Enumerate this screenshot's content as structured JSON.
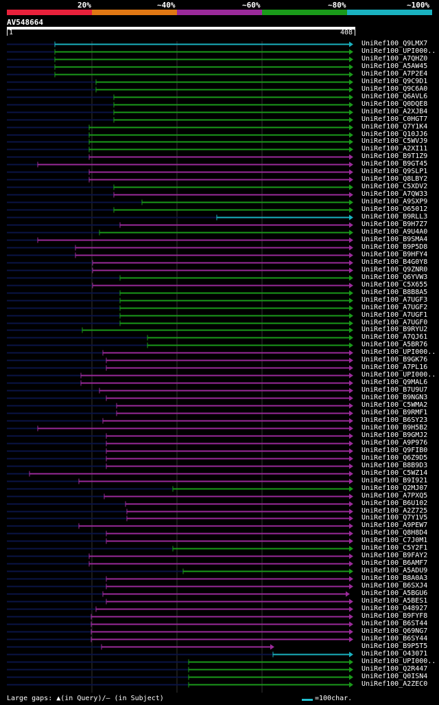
{
  "percent_bar": [
    {
      "label": "20%",
      "color": "#e8213b"
    },
    {
      "label": "~40%",
      "color": "#e07814"
    },
    {
      "label": "~60%",
      "color": "#9a2a9a"
    },
    {
      "label": "~80%",
      "color": "#1a9a1a"
    },
    {
      "label": "~100%",
      "color": "#1ab2c0"
    }
  ],
  "query": {
    "id": "AV548664",
    "start": "1",
    "end": "408"
  },
  "footer": {
    "gaps_text": "Large gaps: ▲(in Query)/— (in Subject)",
    "legend_text": "=100char."
  },
  "colors": {
    "dark": "#0a1446",
    "tan": "#1ab2c0",
    "green": "#1a9a1a",
    "purple": "#9a2a9a",
    "tri": "#ffff99"
  },
  "hits": [
    {
      "id": "UniRef100_Q9LMX7",
      "c": "tan",
      "s": 80,
      "e": 515
    },
    {
      "id": "UniRef100_UPI000..",
      "c": "green",
      "s": 80,
      "e": 515
    },
    {
      "id": "UniRef100_A7QHZ0",
      "c": "green",
      "s": 80,
      "e": 515
    },
    {
      "id": "UniRef100_A5AW45",
      "c": "green",
      "s": 80,
      "e": 515
    },
    {
      "id": "UniRef100_A7P2E4",
      "c": "green",
      "s": 80,
      "e": 515
    },
    {
      "id": "UniRef100_Q9C9D1",
      "c": "green",
      "s": 140,
      "e": 515
    },
    {
      "id": "UniRef100_Q9C6A0",
      "c": "green",
      "s": 140,
      "e": 515
    },
    {
      "id": "UniRef100_Q6AVL6",
      "c": "green",
      "s": 166,
      "e": 515
    },
    {
      "id": "UniRef100_Q0DQE8",
      "c": "green",
      "s": 166,
      "e": 515
    },
    {
      "id": "UniRef100_A2XJB4",
      "c": "green",
      "s": 166,
      "e": 515
    },
    {
      "id": "UniRef100_C0HGT7",
      "c": "green",
      "s": 166,
      "e": 515
    },
    {
      "id": "UniRef100_Q7Y1K4",
      "c": "green",
      "s": 130,
      "e": 515
    },
    {
      "id": "UniRef100_Q10JJ6",
      "c": "green",
      "s": 130,
      "e": 515
    },
    {
      "id": "UniRef100_C5WVJ9",
      "c": "green",
      "s": 130,
      "e": 515
    },
    {
      "id": "UniRef100_A2XI11",
      "c": "green",
      "s": 130,
      "e": 515
    },
    {
      "id": "UniRef100_B9T1Z9",
      "c": "purple",
      "s": 130,
      "e": 515
    },
    {
      "id": "UniRef100_B9GT45",
      "c": "purple",
      "s": 55,
      "e": 515
    },
    {
      "id": "UniRef100_Q9SLP1",
      "c": "purple",
      "s": 130,
      "e": 515
    },
    {
      "id": "UniRef100_Q8LBY2",
      "c": "purple",
      "s": 130,
      "e": 515
    },
    {
      "id": "UniRef100_C5XDV2",
      "c": "green",
      "s": 166,
      "e": 515
    },
    {
      "id": "UniRef100_A7QW33",
      "c": "purple",
      "s": 166,
      "e": 515
    },
    {
      "id": "UniRef100_A9SXP9",
      "c": "green",
      "s": 207,
      "e": 515
    },
    {
      "id": "UniRef100_O65012",
      "c": "green",
      "s": 166,
      "e": 515
    },
    {
      "id": "UniRef100_B9RLL3",
      "c": "tan",
      "s": 316,
      "e": 515
    },
    {
      "id": "UniRef100_B9H7Z7",
      "c": "purple",
      "s": 175,
      "e": 515
    },
    {
      "id": "UniRef100_A9U4A0",
      "c": "green",
      "s": 145,
      "e": 515
    },
    {
      "id": "UniRef100_B9SMA4",
      "c": "purple",
      "s": 55,
      "e": 515
    },
    {
      "id": "UniRef100_B9P5D8",
      "c": "purple",
      "s": 110,
      "e": 515
    },
    {
      "id": "UniRef100_B9HFY4",
      "c": "purple",
      "s": 110,
      "e": 515
    },
    {
      "id": "UniRef100_B4G0Y8",
      "c": "purple",
      "s": 135,
      "e": 515
    },
    {
      "id": "UniRef100_Q9ZNR0",
      "c": "purple",
      "s": 135,
      "e": 515
    },
    {
      "id": "UniRef100_Q6YVW3",
      "c": "green",
      "s": 175,
      "e": 515
    },
    {
      "id": "UniRef100_C5X655",
      "c": "purple",
      "s": 135,
      "e": 515
    },
    {
      "id": "UniRef100_B8B8A5",
      "c": "green",
      "s": 175,
      "e": 515
    },
    {
      "id": "UniRef100_A7UGF3",
      "c": "green",
      "s": 175,
      "e": 515
    },
    {
      "id": "UniRef100_A7UGF2",
      "c": "green",
      "s": 175,
      "e": 515
    },
    {
      "id": "UniRef100_A7UGF1",
      "c": "green",
      "s": 175,
      "e": 515
    },
    {
      "id": "UniRef100_A7UGF0",
      "c": "green",
      "s": 175,
      "e": 515
    },
    {
      "id": "UniRef100_B9RYU2",
      "c": "green",
      "s": 120,
      "e": 515
    },
    {
      "id": "UniRef100_A7QJ61",
      "c": "green",
      "s": 215,
      "e": 515
    },
    {
      "id": "UniRef100_A5BR76",
      "c": "green",
      "s": 215,
      "e": 515
    },
    {
      "id": "UniRef100_UPI000..",
      "c": "purple",
      "s": 150,
      "e": 515
    },
    {
      "id": "UniRef100_B9GK76",
      "c": "purple",
      "s": 155,
      "e": 515
    },
    {
      "id": "UniRef100_A7PL16",
      "c": "purple",
      "s": 155,
      "e": 515
    },
    {
      "id": "UniRef100_UPI000..",
      "c": "purple",
      "s": 118,
      "e": 515
    },
    {
      "id": "UniRef100_Q9MAL6",
      "c": "purple",
      "s": 118,
      "e": 515
    },
    {
      "id": "UniRef100_B7U9U7",
      "c": "purple",
      "s": 145,
      "e": 515
    },
    {
      "id": "UniRef100_B9NGN3",
      "c": "purple",
      "s": 155,
      "e": 515
    },
    {
      "id": "UniRef100_C5WMA2",
      "c": "purple",
      "s": 170,
      "e": 515
    },
    {
      "id": "UniRef100_B9RMF1",
      "c": "purple",
      "s": 170,
      "e": 515
    },
    {
      "id": "UniRef100_B6SY23",
      "c": "purple",
      "s": 150,
      "e": 515
    },
    {
      "id": "UniRef100_B9H5B2",
      "c": "purple",
      "s": 55,
      "e": 515
    },
    {
      "id": "UniRef100_B9GMJ2",
      "c": "purple",
      "s": 155,
      "e": 515
    },
    {
      "id": "UniRef100_A9P976",
      "c": "purple",
      "s": 155,
      "e": 515
    },
    {
      "id": "UniRef100_Q9FIB0",
      "c": "purple",
      "s": 155,
      "e": 515
    },
    {
      "id": "UniRef100_Q6Z9D5",
      "c": "purple",
      "s": 155,
      "e": 515
    },
    {
      "id": "UniRef100_B8B9D3",
      "c": "purple",
      "s": 155,
      "e": 515
    },
    {
      "id": "UniRef100_C5WZ14",
      "c": "purple",
      "s": 43,
      "e": 515
    },
    {
      "id": "UniRef100_B9I921",
      "c": "purple",
      "s": 115,
      "e": 515
    },
    {
      "id": "UniRef100_Q2MJ07",
      "c": "green",
      "s": 252,
      "e": 515
    },
    {
      "id": "UniRef100_A7PXQ5",
      "c": "purple",
      "s": 152,
      "e": 515
    },
    {
      "id": "UniRef100_B6U102",
      "c": "purple",
      "s": 183,
      "e": 515
    },
    {
      "id": "UniRef100_A2Z725",
      "c": "purple",
      "s": 185,
      "e": 515
    },
    {
      "id": "UniRef100_Q7Y1V5",
      "c": "purple",
      "s": 185,
      "e": 515
    },
    {
      "id": "UniRef100_A9PEW7",
      "c": "purple",
      "s": 115,
      "e": 515
    },
    {
      "id": "UniRef100_Q8H8D4",
      "c": "purple",
      "s": 155,
      "e": 515
    },
    {
      "id": "UniRef100_C7J0M1",
      "c": "purple",
      "s": 155,
      "e": 515
    },
    {
      "id": "UniRef100_C5Y2F1",
      "c": "green",
      "s": 252,
      "e": 515
    },
    {
      "id": "UniRef100_B9FAY2",
      "c": "purple",
      "s": 130,
      "e": 515
    },
    {
      "id": "UniRef100_B6AMF7",
      "c": "purple",
      "s": 130,
      "e": 515
    },
    {
      "id": "UniRef100_A5ADU9",
      "c": "green",
      "s": 267,
      "e": 515
    },
    {
      "id": "UniRef100_B8A0A3",
      "c": "purple",
      "s": 155,
      "e": 515
    },
    {
      "id": "UniRef100_B6SXJ4",
      "c": "purple",
      "s": 155,
      "e": 515
    },
    {
      "id": "UniRef100_A5BGU6",
      "c": "purple",
      "s": 150,
      "e": 510
    },
    {
      "id": "UniRef100_A5BES1",
      "c": "purple",
      "s": 155,
      "e": 515
    },
    {
      "id": "UniRef100_O48927",
      "c": "purple",
      "s": 140,
      "e": 515
    },
    {
      "id": "UniRef100_B9FYF8",
      "c": "purple",
      "s": 133,
      "e": 515
    },
    {
      "id": "UniRef100_B6ST44",
      "c": "purple",
      "s": 133,
      "e": 515
    },
    {
      "id": "UniRef100_Q69NG7",
      "c": "purple",
      "s": 133,
      "e": 515
    },
    {
      "id": "UniRef100_B6SY44",
      "c": "purple",
      "s": 133,
      "e": 515
    },
    {
      "id": "UniRef100_B9P5T5",
      "c": "purple",
      "s": 148,
      "e": 400
    },
    {
      "id": "UniRef100_O43071",
      "c": "tan",
      "s": 398,
      "e": 515
    },
    {
      "id": "UniRef100_UPI000..",
      "c": "green",
      "s": 275,
      "e": 515
    },
    {
      "id": "UniRef100_Q2R447",
      "c": "green",
      "s": 275,
      "e": 515
    },
    {
      "id": "UniRef100_Q0ISN4",
      "c": "green",
      "s": 275,
      "e": 515
    },
    {
      "id": "UniRef100_A2ZEC0",
      "c": "green",
      "s": 275,
      "e": 515
    }
  ]
}
